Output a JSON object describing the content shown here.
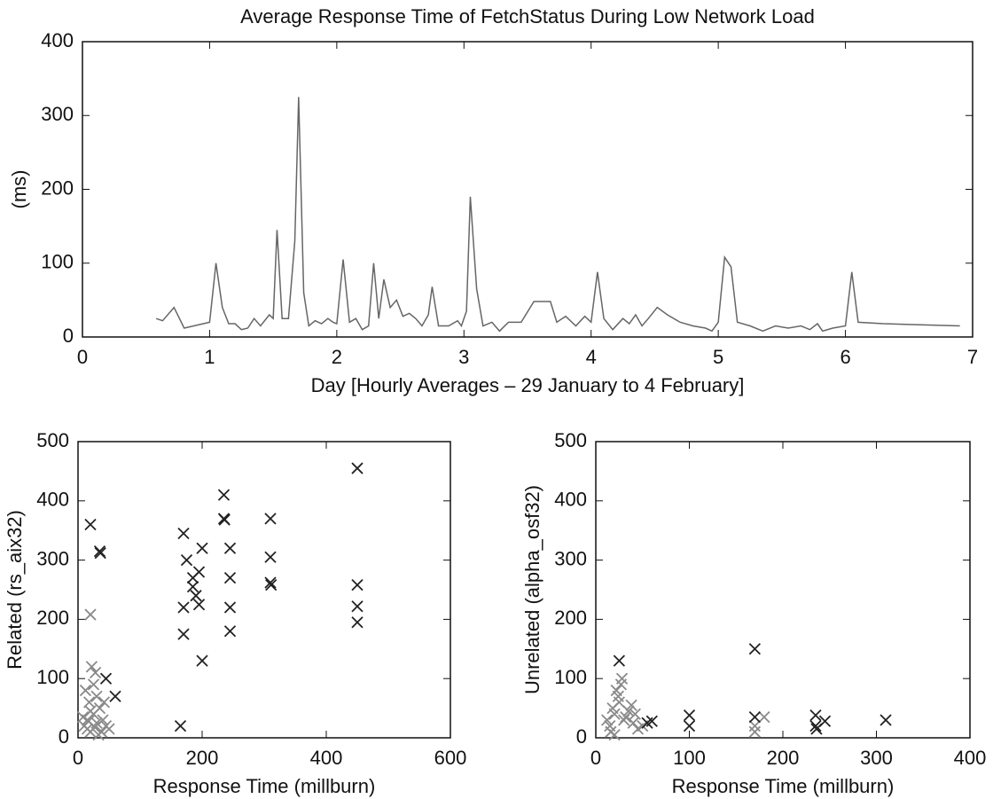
{
  "chart_data": [
    {
      "type": "line",
      "title": "Average Response Time of FetchStatus During Low Network Load",
      "xlabel": "Day [Hourly Averages – 29 January to 4 February]",
      "ylabel": "(ms)",
      "color": "#666666",
      "x": [
        0.58,
        0.63,
        0.72,
        0.8,
        1.0,
        1.05,
        1.1,
        1.15,
        1.2,
        1.25,
        1.3,
        1.35,
        1.4,
        1.47,
        1.5,
        1.53,
        1.57,
        1.62,
        1.67,
        1.7,
        1.74,
        1.78,
        1.83,
        1.88,
        1.93,
        1.97,
        2.0,
        2.05,
        2.1,
        2.15,
        2.2,
        2.25,
        2.29,
        2.33,
        2.37,
        2.42,
        2.47,
        2.52,
        2.57,
        2.62,
        2.67,
        2.72,
        2.75,
        2.8,
        2.88,
        2.95,
        2.98,
        3.02,
        3.05,
        3.1,
        3.15,
        3.22,
        3.28,
        3.35,
        3.45,
        3.55,
        3.68,
        3.73,
        3.8,
        3.88,
        3.95,
        4.0,
        4.05,
        4.1,
        4.17,
        4.25,
        4.3,
        4.35,
        4.4,
        4.45,
        4.52,
        4.6,
        4.7,
        4.8,
        4.9,
        4.95,
        5.0,
        5.05,
        5.1,
        5.15,
        5.25,
        5.35,
        5.45,
        5.55,
        5.65,
        5.72,
        5.78,
        5.82,
        5.9,
        6.0,
        6.05,
        6.1,
        6.3,
        6.9
      ],
      "values": [
        25,
        22,
        40,
        12,
        20,
        100,
        40,
        18,
        18,
        10,
        12,
        25,
        15,
        30,
        25,
        145,
        25,
        25,
        130,
        325,
        60,
        15,
        22,
        18,
        25,
        20,
        18,
        105,
        20,
        25,
        10,
        15,
        100,
        25,
        78,
        40,
        50,
        28,
        32,
        25,
        15,
        30,
        68,
        15,
        15,
        22,
        15,
        35,
        190,
        65,
        15,
        20,
        8,
        20,
        20,
        48,
        48,
        20,
        28,
        15,
        28,
        20,
        88,
        25,
        10,
        25,
        18,
        30,
        15,
        25,
        40,
        30,
        20,
        15,
        12,
        8,
        20,
        108,
        95,
        20,
        15,
        8,
        15,
        12,
        15,
        10,
        18,
        8,
        12,
        15,
        88,
        20,
        18,
        15
      ],
      "xlim": [
        0,
        7
      ],
      "xticks": [
        0,
        1,
        2,
        3,
        4,
        5,
        6,
        7
      ],
      "ylim": [
        0,
        400
      ],
      "yticks": [
        0,
        100,
        200,
        300,
        400
      ]
    },
    {
      "type": "scatter",
      "xlabel": "Response Time (millburn)",
      "ylabel": "Related (rs_aix32)",
      "series": [
        {
          "color": "#8a8a8a",
          "x": [
            10,
            15,
            20,
            25,
            30,
            18,
            12,
            22,
            28,
            35,
            40,
            45,
            15,
            20,
            30,
            25,
            50,
            8,
            38,
            42,
            20,
            33,
            27,
            17
          ],
          "values": [
            20,
            30,
            10,
            40,
            25,
            60,
            80,
            120,
            110,
            50,
            30,
            20,
            15,
            45,
            70,
            90,
            15,
            35,
            10,
            60,
            208,
            5,
            18,
            28
          ]
        },
        {
          "color": "#222222",
          "x": [
            20,
            35,
            36,
            45,
            60,
            170,
            175,
            170,
            170,
            165,
            185,
            185,
            190,
            195,
            200,
            195,
            200,
            235,
            235,
            236,
            245,
            245,
            245,
            245,
            310,
            310,
            310,
            311,
            450,
            450,
            450,
            450
          ],
          "values": [
            360,
            315,
            312,
            100,
            70,
            345,
            300,
            220,
            175,
            20,
            270,
            255,
            240,
            280,
            320,
            225,
            130,
            410,
            370,
            368,
            320,
            270,
            220,
            180,
            370,
            305,
            262,
            258,
            455,
            258,
            222,
            195
          ]
        }
      ],
      "xlim": [
        0,
        600
      ],
      "xticks": [
        0,
        200,
        400,
        600
      ],
      "ylim": [
        0,
        500
      ],
      "yticks": [
        0,
        100,
        200,
        300,
        400,
        500
      ]
    },
    {
      "type": "scatter",
      "xlabel": "Response Time (millburn)",
      "ylabel": "Unrelated (alpha_osf32)",
      "series": [
        {
          "color": "#8a8a8a",
          "x": [
            15,
            20,
            25,
            30,
            18,
            22,
            28,
            35,
            40,
            45,
            16,
            24,
            32,
            50,
            38,
            20,
            27,
            170,
            180,
            170,
            12,
            42
          ],
          "values": [
            20,
            40,
            60,
            30,
            50,
            80,
            100,
            45,
            25,
            15,
            10,
            70,
            35,
            20,
            55,
            5,
            90,
            20,
            35,
            10,
            30,
            40
          ]
        },
        {
          "color": "#222222",
          "x": [
            25,
            170,
            100,
            100,
            170,
            235,
            235,
            236,
            245,
            310,
            60,
            55
          ],
          "values": [
            130,
            150,
            38,
            20,
            35,
            38,
            20,
            15,
            28,
            30,
            28,
            25
          ]
        }
      ],
      "xlim": [
        0,
        400
      ],
      "xticks": [
        0,
        100,
        200,
        300,
        400
      ],
      "ylim": [
        0,
        500
      ],
      "yticks": [
        0,
        100,
        200,
        300,
        400,
        500
      ]
    }
  ]
}
